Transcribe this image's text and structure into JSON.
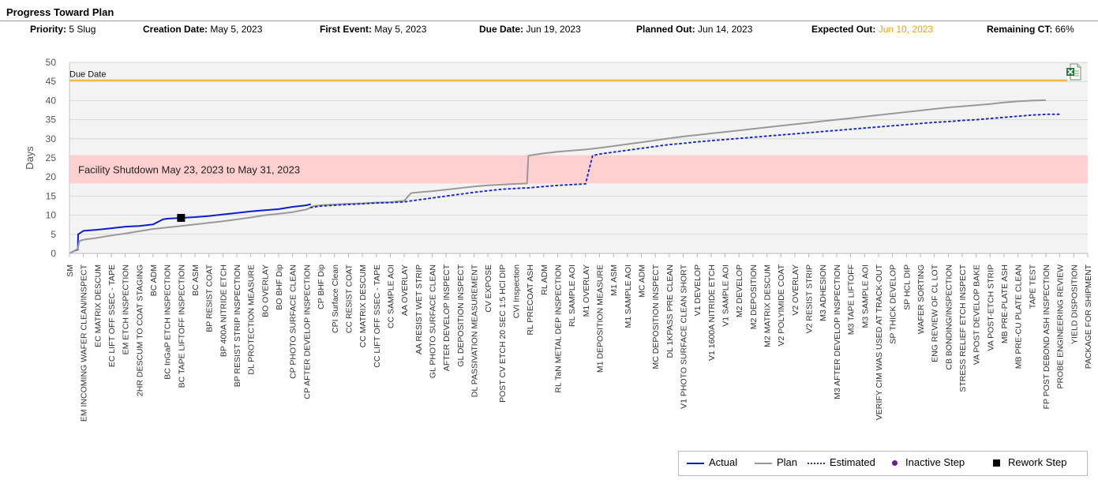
{
  "panel": {
    "title": "Progress Toward Plan"
  },
  "header": {
    "priority": {
      "label": "Priority:",
      "value": "5 Slug"
    },
    "creation_date": {
      "label": "Creation Date:",
      "value": "May 5, 2023"
    },
    "first_event": {
      "label": "First Event:",
      "value": "May 5, 2023"
    },
    "due_date": {
      "label": "Due Date:",
      "value": "Jun 19, 2023"
    },
    "planned_out": {
      "label": "Planned Out:",
      "value": "Jun 14, 2023"
    },
    "expected_out": {
      "label": "Expected Out:",
      "value": "Jun 10, 2023",
      "color": "#f0a30a"
    },
    "remaining_ct": {
      "label": "Remaining CT:",
      "value": "66%"
    }
  },
  "export_icon": "excel-export-icon",
  "legend": {
    "actual": "Actual",
    "plan": "Plan",
    "estimated": "Estimated",
    "inactive": "Inactive Step",
    "rework": "Rework Step"
  },
  "chart_data": {
    "type": "line",
    "ylabel": "Days",
    "ylim": [
      0,
      50
    ],
    "yticks": [
      0,
      5,
      10,
      15,
      20,
      25,
      30,
      35,
      40,
      45,
      50
    ],
    "grid": true,
    "legend_placement": "bottom-right",
    "colors": {
      "actual": "#0d1fc9",
      "plan": "#999999",
      "estimated": "#1a2bd6",
      "due": "#f5b335",
      "shutdown": "#ffcccc",
      "rework": "#000000",
      "inactive": "#6a1b9a"
    },
    "due_line": {
      "label": "Due Date",
      "y": 45.3
    },
    "shutdown_band": {
      "label": "Facility Shutdown May 23, 2023 to May 31, 2023",
      "y_from": 18.3,
      "y_to": 25.7
    },
    "categories": [
      "SM",
      "EM INCOMING WAFER CLEAN/INSPECT",
      "EC MATRIX DESCUM",
      "EC LIFT OFF SSEC - TAPE",
      "EM ETCH INSPECTION",
      "2HR DESCUM TO COAT STAGING",
      "BC ADM",
      "BC InGaP ETCH INSPECTION",
      "BC TAPE LIFTOFF INSPECTION",
      "BC ASM",
      "BP RESIST COAT",
      "BP 400A NITRIDE ETCH",
      "BP RESIST STRIP INSPECTION",
      "DL PROTECTION MEASURE",
      "BO OVERLAY",
      "BO BHF Dip",
      "CP PHOTO SURFACE CLEAN",
      "CP AFTER DEVELOP INSPECTION",
      "CP BHF Dip",
      "CPI Surface Clean",
      "CC RESIST COAT",
      "CC MATRIX DESCUM",
      "CC LIFT OFF SSEC - TAPE",
      "CC SAMPLE AOI",
      "AA OVERLAY",
      "AA RESIST WET STRIP",
      "GL PHOTO SURFACE CLEAN",
      "AFTER DEVELOP INSPECT",
      "GL DEPOSITION INSPECT",
      "DL PASSIVATION MEASUREMENT",
      "CV EXPOSE",
      "POST CV ETCH 20 SEC 1:5 HCl DIP",
      "CVI Inspection",
      "RL PRECOAT ASH",
      "RL ADM",
      "RL TaN METAL DEP INSPECTION",
      "RL SAMPLE AOI",
      "M1 OVERLAY",
      "M1 DEPOSITION MEASURE",
      "M1 ASM",
      "M1 SAMPLE AOI",
      "MC ADM",
      "MC DEPOSITION INSPECT",
      "DL 1KPASS PRE CLEAN",
      "V1 PHOTO SURFACE CLEAN SHORT",
      "V1 DEVELOP",
      "V1 1600A NITRIDE ETCH",
      "V1 SAMPLE AOI",
      "M2 DEVELOP",
      "M2 DEPOSITION",
      "M2 MATRIX DESCUM",
      "V2 POLYIMIDE COAT",
      "V2 OVERLAY",
      "V2 RESIST STRIP",
      "M3 ADHESION",
      "M3 AFTER DEVELOP INSPECTION",
      "M3 TAPE LIFTOFF",
      "M3 SAMPLE AOI",
      "VERIFY CIM WAS USED AT TRACK-OUT",
      "SP THICK DEVELOP",
      "SP HCL DIP",
      "WAFER SORTING",
      "ENG REVIEW OF CL LOT",
      "CB BONDING/INSPECTION",
      "STRESS RELIEF ETCH INSPECT",
      "VA POST DEVELOP BAKE",
      "VA POST-ETCH STRIP",
      "MB PRE-PLATE ASH",
      "MB PRE-CU PLATE CLEAN",
      "TAPE TEST",
      "FP POST DEBOND ASH INSPECTION",
      "PROBE ENGINEERING REVIEW",
      "YIELD DISPOSITION",
      "PACKAGE FOR SHIPMENT"
    ],
    "series": [
      {
        "name": "Actual",
        "style": "solid",
        "points": [
          [
            0,
            0
          ],
          [
            0.3,
            0.6
          ],
          [
            0.6,
            1
          ],
          [
            0.62,
            5
          ],
          [
            1,
            5.9
          ],
          [
            2,
            6.2
          ],
          [
            3,
            6.6
          ],
          [
            4,
            7
          ],
          [
            5,
            7.2
          ],
          [
            6,
            7.6
          ],
          [
            6.7,
            8.9
          ],
          [
            7,
            9.1
          ],
          [
            8,
            9.3
          ],
          [
            9,
            9.5
          ],
          [
            10,
            9.8
          ],
          [
            11,
            10.2
          ],
          [
            12,
            10.6
          ],
          [
            13,
            11
          ],
          [
            14,
            11.3
          ],
          [
            15,
            11.6
          ],
          [
            16,
            12.2
          ],
          [
            17,
            12.6
          ],
          [
            17.3,
            12.9
          ]
        ]
      },
      {
        "name": "Plan",
        "style": "solid",
        "points": [
          [
            0,
            0
          ],
          [
            0.6,
            1.2
          ],
          [
            0.7,
            3.2
          ],
          [
            1,
            3.6
          ],
          [
            2,
            4.1
          ],
          [
            3,
            4.7
          ],
          [
            4,
            5.2
          ],
          [
            5,
            5.8
          ],
          [
            6,
            6.4
          ],
          [
            7,
            6.8
          ],
          [
            8,
            7.2
          ],
          [
            9,
            7.6
          ],
          [
            10,
            8.0
          ],
          [
            11,
            8.4
          ],
          [
            12,
            8.9
          ],
          [
            13,
            9.4
          ],
          [
            14,
            10
          ],
          [
            15,
            10.4
          ],
          [
            16,
            10.8
          ],
          [
            17,
            11.5
          ],
          [
            17.5,
            12.4
          ],
          [
            18,
            12.6
          ],
          [
            19,
            12.8
          ],
          [
            20,
            13
          ],
          [
            21,
            13.1
          ],
          [
            22,
            13.3
          ],
          [
            23,
            13.4
          ],
          [
            24,
            13.8
          ],
          [
            24.5,
            15.8
          ],
          [
            25,
            16
          ],
          [
            26,
            16.3
          ],
          [
            27,
            16.7
          ],
          [
            28,
            17.1
          ],
          [
            29,
            17.5
          ],
          [
            30,
            17.8
          ],
          [
            31,
            18
          ],
          [
            32,
            18.2
          ],
          [
            32.8,
            18.3
          ],
          [
            32.9,
            25.6
          ],
          [
            34,
            26.2
          ],
          [
            35,
            26.6
          ],
          [
            36,
            26.9
          ],
          [
            37,
            27.2
          ],
          [
            38,
            27.6
          ],
          [
            39,
            28.1
          ],
          [
            40,
            28.6
          ],
          [
            41,
            29.1
          ],
          [
            42,
            29.6
          ],
          [
            43,
            30.1
          ],
          [
            44,
            30.6
          ],
          [
            45,
            31
          ],
          [
            46,
            31.4
          ],
          [
            47,
            31.8
          ],
          [
            48,
            32.2
          ],
          [
            49,
            32.6
          ],
          [
            50,
            33
          ],
          [
            51,
            33.4
          ],
          [
            52,
            33.8
          ],
          [
            53,
            34.2
          ],
          [
            54,
            34.6
          ],
          [
            55,
            35
          ],
          [
            56,
            35.4
          ],
          [
            57,
            35.8
          ],
          [
            58,
            36.2
          ],
          [
            59,
            36.6
          ],
          [
            60,
            37
          ],
          [
            61,
            37.4
          ],
          [
            62,
            37.8
          ],
          [
            63,
            38.2
          ],
          [
            64,
            38.5
          ],
          [
            65,
            38.8
          ],
          [
            66,
            39.1
          ],
          [
            67,
            39.5
          ],
          [
            68,
            39.8
          ],
          [
            69,
            40
          ],
          [
            70,
            40.1
          ]
        ]
      },
      {
        "name": "Estimated",
        "style": "dotted",
        "points": [
          [
            17.3,
            12
          ],
          [
            18,
            12.4
          ],
          [
            19,
            12.6
          ],
          [
            20,
            12.8
          ],
          [
            21,
            13
          ],
          [
            22,
            13.2
          ],
          [
            23,
            13.3
          ],
          [
            24,
            13.5
          ],
          [
            25,
            14
          ],
          [
            26,
            14.5
          ],
          [
            27,
            15
          ],
          [
            28,
            15.5
          ],
          [
            29,
            16
          ],
          [
            30,
            16.4
          ],
          [
            31,
            16.8
          ],
          [
            32,
            17
          ],
          [
            33,
            17.2
          ],
          [
            34,
            17.5
          ],
          [
            35,
            17.8
          ],
          [
            36,
            18
          ],
          [
            37,
            18.2
          ],
          [
            37.5,
            25.6
          ],
          [
            38,
            26
          ],
          [
            39,
            26.5
          ],
          [
            40,
            27
          ],
          [
            41,
            27.5
          ],
          [
            42,
            28
          ],
          [
            43,
            28.5
          ],
          [
            44,
            28.8
          ],
          [
            45,
            29.2
          ],
          [
            46,
            29.5
          ],
          [
            47,
            29.8
          ],
          [
            48,
            30.1
          ],
          [
            49,
            30.4
          ],
          [
            50,
            30.7
          ],
          [
            51,
            31
          ],
          [
            52,
            31.3
          ],
          [
            53,
            31.6
          ],
          [
            54,
            31.9
          ],
          [
            55,
            32.2
          ],
          [
            56,
            32.5
          ],
          [
            57,
            32.8
          ],
          [
            58,
            33.1
          ],
          [
            59,
            33.4
          ],
          [
            60,
            33.7
          ],
          [
            61,
            34
          ],
          [
            62,
            34.3
          ],
          [
            63,
            34.5
          ],
          [
            64,
            34.8
          ],
          [
            65,
            35
          ],
          [
            66,
            35.3
          ],
          [
            67,
            35.6
          ],
          [
            68,
            35.9
          ],
          [
            69,
            36.2
          ],
          [
            70,
            36.4
          ],
          [
            71,
            36.4
          ]
        ]
      }
    ],
    "rework_points": [
      [
        8,
        9.3
      ]
    ]
  }
}
